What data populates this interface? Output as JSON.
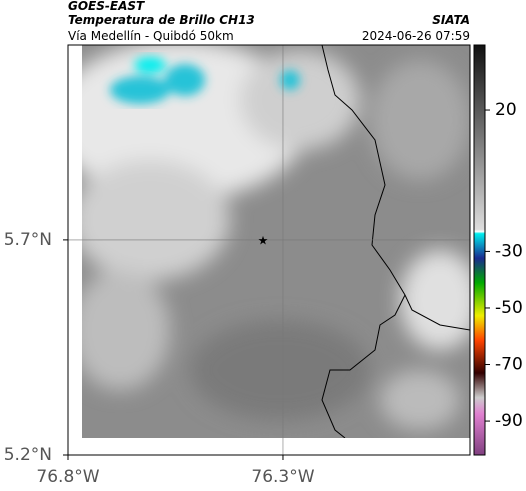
{
  "header": {
    "satellite": "GOES-EAST",
    "product": "Temperatura de Brillo CH13",
    "region": "Vía Medellín - Quibdó 50km",
    "source": "SIATA",
    "datetime": "2024-06-26 07:59"
  },
  "map": {
    "xlim": [
      -76.8,
      -75.865
    ],
    "ylim": [
      5.2,
      6.153
    ],
    "xticks": [
      {
        "value": -76.8,
        "label": "76.8°W"
      },
      {
        "value": -76.3,
        "label": "76.3°W"
      }
    ],
    "yticks": [
      {
        "value": 5.2,
        "label": "5.2°N"
      },
      {
        "value": 5.7,
        "label": "5.7°N"
      }
    ],
    "grid": true
  },
  "colorbar": {
    "lim": [
      -102,
      43
    ],
    "ticks": [
      20,
      -30,
      -50,
      -70,
      -90
    ]
  }
}
